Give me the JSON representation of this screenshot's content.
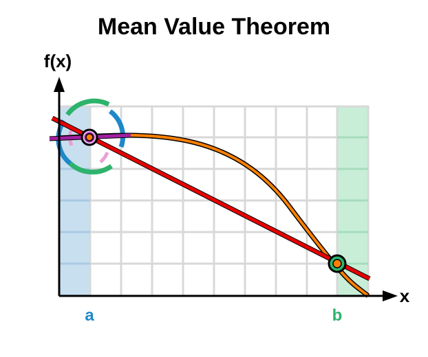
{
  "diagram": {
    "title": "Mean Value Theorem",
    "y_axis_label": "f(x)",
    "x_axis_label": "x",
    "point_a_label": "a",
    "point_b_label": "b"
  },
  "colors": {
    "curve": "#ff8000",
    "secant": "#e60000",
    "tangent": "#a020a0",
    "point_a": "#1e88c8",
    "point_b": "#2db36b",
    "band_a": "#c8dff0",
    "band_b": "#c8eed8",
    "grid": "#d8d8d8",
    "axis": "#000000"
  }
}
